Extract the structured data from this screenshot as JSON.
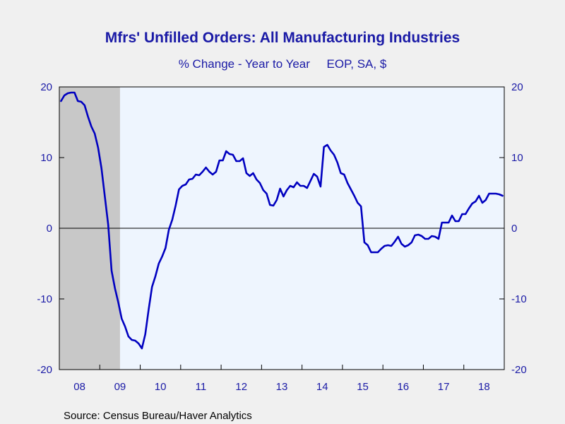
{
  "chart_data": {
    "type": "line",
    "title": "Mfrs' Unfilled Orders: All Manufacturing Industries",
    "subtitle": "% Change - Year to Year     EOP, SA, $",
    "source": "Source:  Census Bureau/Haver Analytics",
    "xlabel": "",
    "ylabel": "",
    "x_start": "2008-01",
    "x_end": "2018-12",
    "x_tick_labels": [
      "08",
      "09",
      "10",
      "11",
      "12",
      "13",
      "14",
      "15",
      "16",
      "17",
      "18"
    ],
    "ylim": [
      -20,
      20
    ],
    "y_ticks": [
      -20,
      -10,
      0,
      10,
      20
    ],
    "y_axis_both_sides": true,
    "zero_line": true,
    "grid": false,
    "recession_shading": {
      "start": "2008-01",
      "end": "2009-06",
      "color": "#c8c8c8"
    },
    "plot_background": "#eef5fe",
    "line_color": "#0000c0",
    "series": [
      {
        "x": [
          "2008-01",
          "2008-02",
          "2008-03",
          "2008-04",
          "2008-05",
          "2008-06",
          "2008-07",
          "2008-08",
          "2008-09",
          "2008-10",
          "2008-11",
          "2008-12",
          "2009-01",
          "2009-02",
          "2009-03",
          "2009-04",
          "2009-05",
          "2009-06",
          "2009-07",
          "2009-08",
          "2009-09",
          "2009-10",
          "2009-11",
          "2009-12",
          "2010-01",
          "2010-02",
          "2010-03",
          "2010-04",
          "2010-05",
          "2010-06",
          "2010-07",
          "2010-08",
          "2010-09",
          "2010-10",
          "2010-11",
          "2010-12",
          "2011-01",
          "2011-02",
          "2011-03",
          "2011-04",
          "2011-05",
          "2011-06",
          "2011-07",
          "2011-08",
          "2011-09",
          "2011-10",
          "2011-11",
          "2011-12",
          "2012-01",
          "2012-02",
          "2012-03",
          "2012-04",
          "2012-05",
          "2012-06",
          "2012-07",
          "2012-08",
          "2012-09",
          "2012-10",
          "2012-11",
          "2012-12",
          "2013-01",
          "2013-02",
          "2013-03",
          "2013-04",
          "2013-05",
          "2013-06",
          "2013-07",
          "2013-08",
          "2013-09",
          "2013-10",
          "2013-11",
          "2013-12",
          "2014-01",
          "2014-02",
          "2014-03",
          "2014-04",
          "2014-05",
          "2014-06",
          "2014-07",
          "2014-08",
          "2014-09",
          "2014-10",
          "2014-11",
          "2014-12",
          "2015-01",
          "2015-02",
          "2015-03",
          "2015-04",
          "2015-05",
          "2015-06",
          "2015-07",
          "2015-08",
          "2015-09",
          "2015-10",
          "2015-11",
          "2015-12",
          "2016-01",
          "2016-02",
          "2016-03",
          "2016-04",
          "2016-05",
          "2016-06",
          "2016-07",
          "2016-08",
          "2016-09",
          "2016-10",
          "2016-11",
          "2016-12",
          "2017-01",
          "2017-02",
          "2017-03",
          "2017-04",
          "2017-05",
          "2017-06",
          "2017-07",
          "2017-08",
          "2017-09",
          "2017-10",
          "2017-11",
          "2017-12",
          "2018-01",
          "2018-02",
          "2018-03",
          "2018-04",
          "2018-05",
          "2018-06",
          "2018-07",
          "2018-08",
          "2018-09",
          "2018-10",
          "2018-11",
          "2018-12"
        ],
        "values": [
          18.0,
          18.8,
          19.1,
          19.2,
          19.2,
          18.0,
          17.9,
          17.4,
          15.8,
          14.4,
          13.4,
          11.4,
          8.5,
          4.5,
          0.5,
          -6.0,
          -8.5,
          -10.5,
          -12.8,
          -13.9,
          -15.3,
          -15.8,
          -15.9,
          -16.3,
          -17.0,
          -15.0,
          -11.5,
          -8.3,
          -6.8,
          -5.0,
          -4.0,
          -2.8,
          -0.2,
          1.2,
          3.2,
          5.5,
          6.0,
          6.2,
          6.9,
          7.0,
          7.6,
          7.5,
          8.0,
          8.6,
          8.0,
          7.6,
          8.0,
          9.6,
          9.6,
          10.9,
          10.5,
          10.4,
          9.5,
          9.5,
          9.9,
          7.8,
          7.4,
          7.8,
          6.9,
          6.4,
          5.4,
          4.9,
          3.3,
          3.2,
          4.0,
          5.6,
          4.5,
          5.4,
          6.0,
          5.8,
          6.5,
          6.0,
          6.0,
          5.7,
          6.7,
          7.7,
          7.3,
          5.9,
          11.5,
          11.8,
          11.0,
          10.4,
          9.3,
          7.8,
          7.6,
          6.4,
          5.5,
          4.6,
          3.6,
          3.1,
          -2.0,
          -2.4,
          -3.4,
          -3.4,
          -3.4,
          -2.9,
          -2.5,
          -2.4,
          -2.5,
          -1.9,
          -1.2,
          -2.2,
          -2.6,
          -2.4,
          -2.0,
          -1.0,
          -0.9,
          -1.1,
          -1.5,
          -1.5,
          -1.1,
          -1.2,
          -1.5,
          0.8,
          0.8,
          0.8,
          1.8,
          1.0,
          1.0,
          2.0,
          2.0,
          2.8,
          3.5,
          3.8,
          4.6,
          3.6,
          4.0,
          4.9,
          4.9,
          4.9,
          4.8,
          4.6
        ]
      }
    ]
  }
}
